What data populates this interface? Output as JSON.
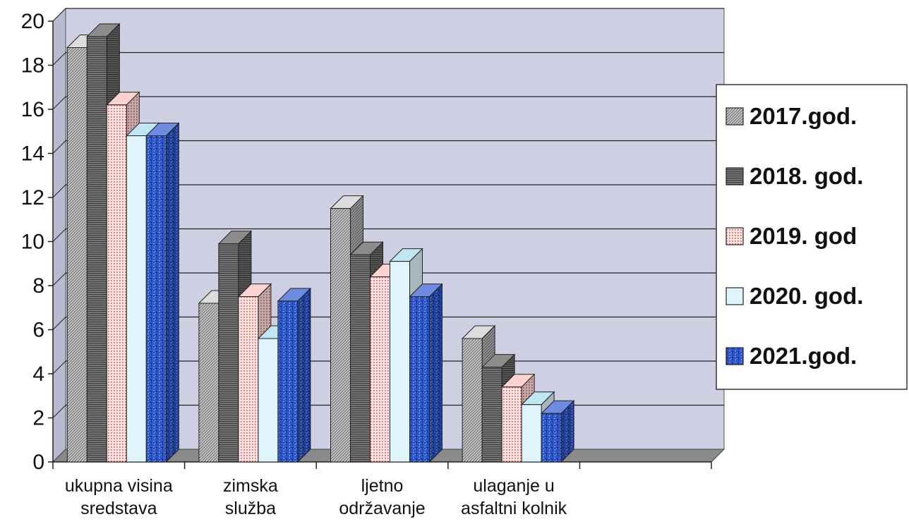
{
  "chart_data": {
    "type": "bar",
    "categories": [
      [
        "ukupna visina",
        "sredstava"
      ],
      [
        "zimska",
        "služba"
      ],
      [
        "ljetno",
        "održavanje"
      ],
      [
        "ulaganje u",
        "asfaltni kolnik"
      ],
      [
        ""
      ]
    ],
    "series": [
      {
        "name": "2017.god.",
        "values": [
          18.8,
          7.2,
          11.5,
          5.6,
          null
        ],
        "fill_pattern": "diag-gray",
        "color": "#b8b8b8"
      },
      {
        "name": "2018. god.",
        "values": [
          19.3,
          9.9,
          9.4,
          4.3,
          null
        ],
        "fill_pattern": "hstripe-dark",
        "color": "#6b6b6b"
      },
      {
        "name": "2019. god",
        "values": [
          16.2,
          7.5,
          8.4,
          3.4,
          null
        ],
        "fill_pattern": "dots-red",
        "color": "#f0b0b0"
      },
      {
        "name": "2020. god.",
        "values": [
          14.8,
          5.6,
          9.1,
          2.6,
          null
        ],
        "fill_pattern": "plain-lightblue",
        "color": "#dff4fb"
      },
      {
        "name": "2021.god.",
        "values": [
          14.8,
          7.3,
          7.5,
          2.2,
          null
        ],
        "fill_pattern": "mottled-blue",
        "color": "#2a4fc0"
      }
    ],
    "y_ticks": [
      "0",
      "2",
      "4",
      "6",
      "8",
      "10",
      "12",
      "14",
      "16",
      "18",
      "20"
    ],
    "ylim": [
      0,
      20
    ],
    "grid": true,
    "legend_position": "right",
    "style": "3d-clustered-bar",
    "wall_color": "#cfcfe3"
  }
}
